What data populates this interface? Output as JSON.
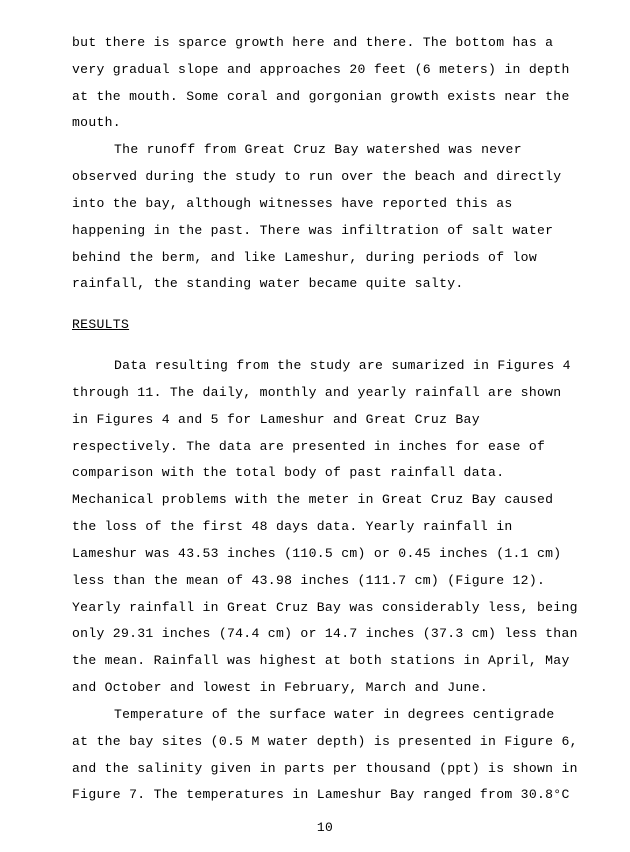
{
  "typography": {
    "font_family": "Courier New",
    "font_size_pt": 10,
    "line_height": 2.05,
    "text_color": "#000000",
    "background_color": "#ffffff"
  },
  "para1": "but there is sparce growth here and there.  The bottom has a very gradual slope and approaches 20 feet (6 meters) in depth at the mouth.  Some coral and gorgonian growth exists near the mouth.",
  "para2": "The runoff from Great Cruz Bay watershed was never observed during the study to run over the beach and directly into the bay, although witnesses have reported this as happening in the past.  There was infiltration of salt water behind the berm, and like Lameshur, during periods of low rainfall, the standing water became quite salty.",
  "heading": "RESULTS",
  "para3": "Data resulting from the study are sumarized in Figures 4 through 11.  The daily, monthly and yearly rainfall are shown in Figures 4 and 5 for Lameshur and Great Cruz Bay respectively.  The data are presented in inches for ease of comparison with the total body of past rainfall data.  Mechanical problems with the meter in Great Cruz Bay caused the loss of the first 48 days data.  Yearly rainfall in Lameshur was 43.53 inches (110.5 cm) or 0.45 inches (1.1 cm) less than the mean of 43.98 inches (111.7 cm) (Figure 12).  Yearly rainfall in Great Cruz Bay was considerably less, being only 29.31 inches (74.4 cm) or 14.7 inches (37.3 cm) less than the mean.  Rainfall was highest at both stations in April, May and October and lowest in February, March and June.",
  "para4": "Temperature of the surface water in degrees centigrade at the bay sites (0.5 M water depth) is presented in Figure 6, and the salinity given in parts per thousand (ppt) is shown in Figure 7.  The temperatures in Lameshur Bay ranged from 30.8°C",
  "pagenum": "10"
}
